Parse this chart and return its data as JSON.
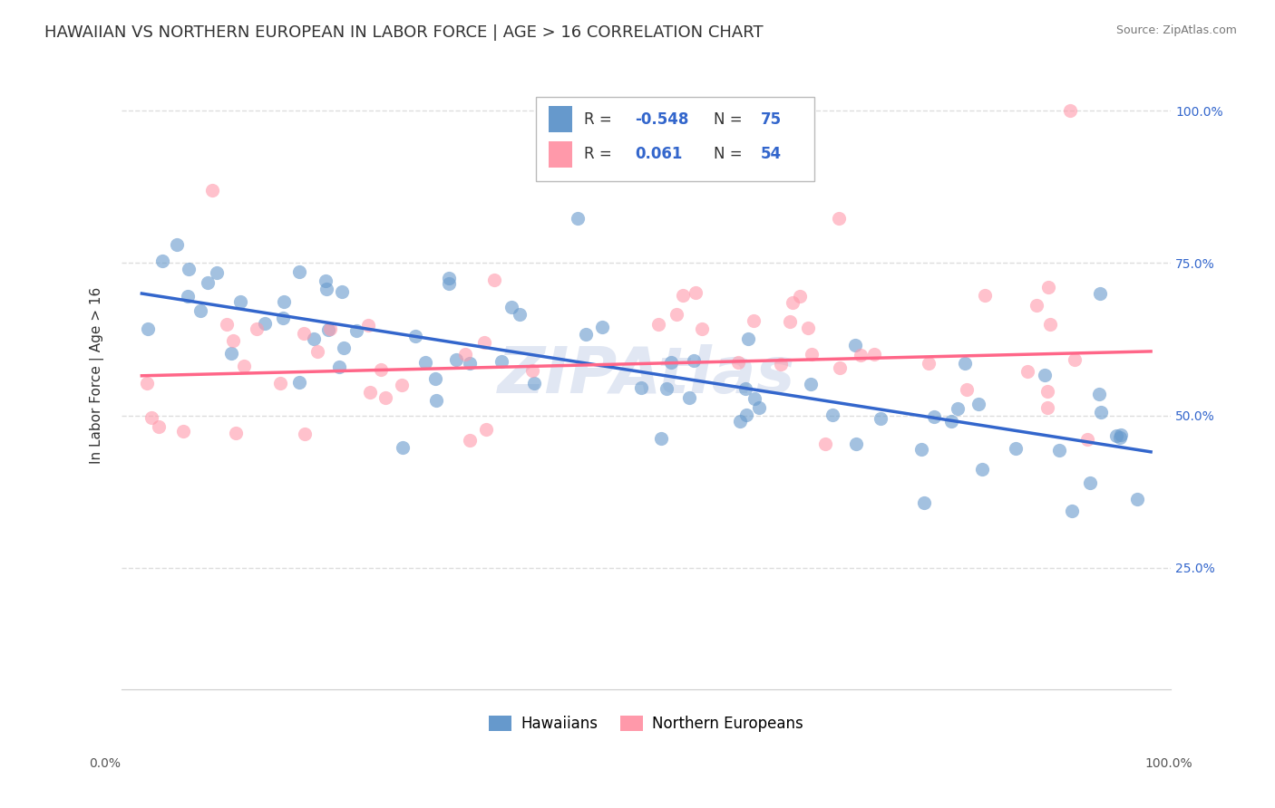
{
  "title": "HAWAIIAN VS NORTHERN EUROPEAN IN LABOR FORCE | AGE > 16 CORRELATION CHART",
  "source": "Source: ZipAtlas.com",
  "ylabel": "In Labor Force | Age > 16",
  "yticks": [
    "100.0%",
    "75.0%",
    "50.0%",
    "25.0%"
  ],
  "ytick_vals": [
    1.0,
    0.75,
    0.5,
    0.25
  ],
  "blue_color": "#6699CC",
  "pink_color": "#FF99AA",
  "blue_line_color": "#3366CC",
  "pink_line_color": "#FF6688",
  "watermark": "ZIPAtlas",
  "background_color": "#FFFFFF",
  "grid_color": "#DDDDDD",
  "title_fontsize": 13,
  "axis_label_fontsize": 11,
  "tick_fontsize": 10,
  "blue_trendline_y": [
    0.7,
    0.44
  ],
  "pink_trendline_y": [
    0.565,
    0.605
  ]
}
